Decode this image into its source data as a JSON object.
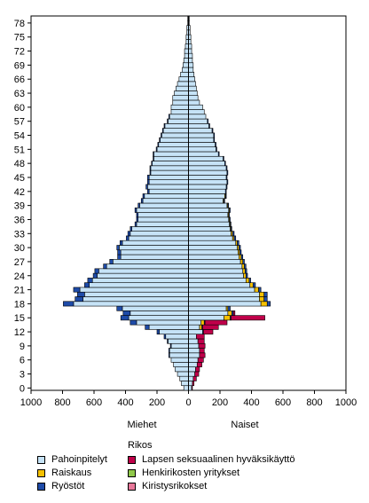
{
  "chart_data": {
    "type": "bar",
    "orientation": "horizontal-population-pyramid",
    "ages": [
      0,
      1,
      2,
      3,
      4,
      5,
      6,
      7,
      8,
      9,
      10,
      11,
      12,
      13,
      14,
      15,
      16,
      17,
      18,
      19,
      20,
      21,
      22,
      23,
      24,
      25,
      26,
      27,
      28,
      29,
      30,
      31,
      32,
      33,
      34,
      35,
      36,
      37,
      38,
      39,
      40,
      41,
      42,
      43,
      44,
      45,
      46,
      47,
      48,
      49,
      50,
      51,
      52,
      53,
      54,
      55,
      56,
      57,
      58,
      59,
      60,
      61,
      62,
      63,
      64,
      65,
      66,
      67,
      68,
      69,
      70,
      71,
      72,
      73,
      74,
      75,
      76,
      77,
      78,
      79
    ],
    "y_tick_labels": [
      "0",
      "3",
      "6",
      "9",
      "12",
      "15",
      "18",
      "21",
      "24",
      "27",
      "30",
      "33",
      "36",
      "39",
      "42",
      "45",
      "48",
      "51",
      "54",
      "57",
      "60",
      "63",
      "66",
      "69",
      "72",
      "75",
      "78"
    ],
    "x_tick_labels": [
      "1000",
      "800",
      "600",
      "400",
      "200",
      "0",
      "200",
      "400",
      "600",
      "800",
      "1000"
    ],
    "xlim": [
      -1000,
      1000
    ],
    "men_label": "Miehet",
    "women_label": "Naiset",
    "legend_title": "Rikos",
    "series": [
      {
        "name": "Pahoinpitelyt",
        "color": "#c6e3f7",
        "men": [
          30,
          45,
          55,
          70,
          85,
          95,
          110,
          120,
          120,
          110,
          130,
          145,
          185,
          250,
          330,
          380,
          370,
          420,
          730,
          670,
          660,
          690,
          630,
          610,
          580,
          570,
          520,
          480,
          430,
          430,
          440,
          420,
          380,
          370,
          360,
          330,
          320,
          320,
          330,
          310,
          290,
          280,
          250,
          260,
          250,
          250,
          240,
          240,
          230,
          220,
          220,
          200,
          190,
          180,
          170,
          160,
          150,
          130,
          120,
          110,
          110,
          100,
          100,
          90,
          80,
          70,
          60,
          50,
          40,
          35,
          30,
          25,
          25,
          20,
          15,
          15,
          10,
          10,
          5,
          5
        ],
        "women": [
          20,
          25,
          30,
          40,
          45,
          55,
          60,
          70,
          70,
          65,
          60,
          50,
          90,
          70,
          80,
          225,
          250,
          240,
          460,
          450,
          450,
          420,
          390,
          365,
          350,
          345,
          340,
          330,
          320,
          315,
          310,
          300,
          280,
          270,
          265,
          260,
          255,
          250,
          255,
          245,
          220,
          230,
          235,
          240,
          245,
          240,
          245,
          240,
          230,
          220,
          190,
          175,
          170,
          160,
          160,
          150,
          130,
          120,
          110,
          100,
          90,
          70,
          60,
          55,
          50,
          45,
          40,
          35,
          30,
          30,
          25,
          25,
          20,
          20,
          15,
          15,
          10,
          10,
          5,
          5
        ]
      },
      {
        "name": "Raiskaus",
        "color": "#f5c000",
        "men": [
          0,
          0,
          0,
          0,
          0,
          0,
          0,
          0,
          0,
          0,
          0,
          0,
          0,
          0,
          0,
          0,
          0,
          0,
          0,
          0,
          0,
          0,
          0,
          0,
          0,
          0,
          0,
          0,
          0,
          0,
          0,
          0,
          0,
          0,
          0,
          0,
          0,
          0,
          0,
          0,
          0,
          0,
          0,
          0,
          0,
          0,
          0,
          0,
          0,
          0,
          0,
          0,
          0,
          0,
          0,
          0,
          0,
          0,
          0,
          0,
          0,
          0,
          0,
          0,
          0,
          0,
          0,
          0,
          0,
          0,
          0,
          0,
          0,
          0,
          0,
          0,
          0,
          0,
          0,
          0
        ],
        "women": [
          0,
          0,
          0,
          0,
          0,
          0,
          0,
          0,
          0,
          0,
          0,
          0,
          0,
          15,
          20,
          40,
          25,
          10,
          40,
          30,
          30,
          25,
          20,
          20,
          15,
          15,
          15,
          15,
          15,
          10,
          10,
          10,
          10,
          10,
          5,
          5,
          5,
          5,
          5,
          5,
          5,
          5,
          0,
          0,
          0,
          0,
          0,
          0,
          0,
          0,
          0,
          0,
          0,
          0,
          0,
          0,
          0,
          0,
          0,
          0,
          0,
          0,
          0,
          0,
          0,
          0,
          0,
          0,
          0,
          0,
          0,
          0,
          0,
          0,
          0,
          0,
          0,
          0,
          0,
          0
        ]
      },
      {
        "name": "Ryöstöt",
        "color": "#1e4ba8",
        "men": [
          0,
          0,
          0,
          0,
          0,
          0,
          0,
          5,
          5,
          5,
          5,
          10,
          15,
          25,
          40,
          50,
          45,
          35,
          65,
          50,
          45,
          40,
          30,
          30,
          25,
          25,
          20,
          20,
          20,
          20,
          15,
          15,
          15,
          15,
          10,
          10,
          10,
          10,
          10,
          10,
          10,
          10,
          10,
          10,
          10,
          10,
          5,
          5,
          5,
          5,
          5,
          5,
          5,
          5,
          5,
          5,
          5,
          5,
          5,
          0,
          0,
          0,
          0,
          0,
          0,
          0,
          0,
          0,
          0,
          0,
          0,
          0,
          0,
          0,
          0,
          0,
          0,
          0,
          0,
          0
        ],
        "women": [
          0,
          0,
          0,
          0,
          0,
          0,
          0,
          0,
          0,
          0,
          0,
          0,
          5,
          5,
          5,
          5,
          10,
          15,
          20,
          20,
          20,
          15,
          15,
          10,
          10,
          10,
          10,
          10,
          10,
          10,
          10,
          10,
          10,
          10,
          5,
          5,
          5,
          5,
          5,
          5,
          5,
          5,
          5,
          5,
          5,
          5,
          5,
          5,
          5,
          5,
          5,
          5,
          5,
          5,
          5,
          5,
          5,
          5,
          0,
          0,
          0,
          0,
          0,
          0,
          0,
          0,
          0,
          0,
          0,
          0,
          0,
          0,
          0,
          0,
          0,
          0,
          0,
          0,
          0,
          0
        ]
      },
      {
        "name": "Lapsen seksuaalinen hyväksikäyttö",
        "color": "#c0004a",
        "men": [
          0,
          0,
          0,
          0,
          0,
          0,
          0,
          0,
          0,
          0,
          0,
          0,
          0,
          0,
          0,
          0,
          0,
          0,
          0,
          0,
          0,
          0,
          0,
          0,
          0,
          0,
          0,
          0,
          0,
          0,
          0,
          0,
          0,
          0,
          0,
          0,
          0,
          0,
          0,
          0,
          0,
          0,
          0,
          0,
          0,
          0,
          0,
          0,
          0,
          0,
          0,
          0,
          0,
          0,
          0,
          0,
          0,
          0,
          0,
          0,
          0,
          0,
          0,
          0,
          0,
          0,
          0,
          0,
          0,
          0,
          0,
          0,
          0,
          0,
          0,
          0,
          0,
          0,
          0,
          0
        ],
        "women": [
          5,
          10,
          20,
          25,
          25,
          30,
          35,
          35,
          30,
          40,
          40,
          50,
          60,
          100,
          140,
          215,
          10,
          0,
          0,
          0,
          0,
          0,
          0,
          0,
          0,
          0,
          0,
          0,
          0,
          0,
          0,
          0,
          0,
          0,
          0,
          0,
          0,
          0,
          0,
          0,
          0,
          0,
          0,
          0,
          0,
          0,
          0,
          0,
          0,
          0,
          0,
          0,
          0,
          0,
          0,
          0,
          0,
          0,
          0,
          0,
          0,
          0,
          0,
          0,
          0,
          0,
          0,
          0,
          0,
          0,
          0,
          0,
          0,
          0,
          0,
          0,
          0,
          0,
          0,
          0
        ]
      },
      {
        "name": "Henkirikosten yritykset",
        "color": "#8fc84a",
        "men": [
          0,
          0,
          0,
          0,
          0,
          0,
          0,
          0,
          0,
          0,
          0,
          0,
          0,
          0,
          0,
          0,
          0,
          0,
          0,
          0,
          0,
          0,
          0,
          0,
          0,
          0,
          0,
          0,
          0,
          0,
          0,
          0,
          0,
          0,
          0,
          0,
          0,
          0,
          0,
          0,
          0,
          0,
          0,
          0,
          0,
          0,
          0,
          0,
          0,
          0,
          0,
          0,
          0,
          0,
          0,
          0,
          0,
          0,
          0,
          0,
          0,
          0,
          0,
          0,
          0,
          0,
          0,
          0,
          0,
          0,
          0,
          0,
          0,
          0,
          0,
          0,
          0,
          0,
          0,
          0
        ],
        "women": [
          0,
          0,
          0,
          0,
          0,
          0,
          0,
          0,
          0,
          0,
          0,
          0,
          0,
          0,
          0,
          0,
          0,
          0,
          0,
          0,
          0,
          0,
          0,
          0,
          0,
          0,
          0,
          0,
          0,
          0,
          0,
          0,
          0,
          0,
          0,
          0,
          0,
          0,
          0,
          0,
          0,
          0,
          0,
          0,
          0,
          0,
          0,
          0,
          0,
          0,
          0,
          0,
          0,
          0,
          0,
          0,
          0,
          0,
          0,
          0,
          0,
          0,
          0,
          0,
          0,
          0,
          0,
          0,
          0,
          0,
          0,
          0,
          0,
          0,
          0,
          0,
          0,
          0,
          0,
          0
        ]
      },
      {
        "name": "Kiristysrikokset",
        "color": "#e8789a",
        "men": [
          0,
          0,
          0,
          0,
          0,
          0,
          0,
          0,
          0,
          0,
          0,
          0,
          0,
          0,
          0,
          0,
          0,
          0,
          0,
          0,
          0,
          0,
          0,
          0,
          0,
          0,
          0,
          0,
          0,
          0,
          0,
          0,
          0,
          0,
          0,
          0,
          0,
          0,
          0,
          0,
          0,
          0,
          0,
          0,
          0,
          0,
          0,
          0,
          0,
          0,
          0,
          0,
          0,
          0,
          0,
          0,
          0,
          0,
          0,
          0,
          0,
          0,
          0,
          0,
          0,
          0,
          0,
          0,
          0,
          0,
          0,
          0,
          0,
          0,
          0,
          0,
          0,
          0,
          0,
          0
        ],
        "women": [
          0,
          0,
          0,
          0,
          0,
          0,
          0,
          0,
          0,
          0,
          0,
          0,
          0,
          0,
          0,
          0,
          0,
          0,
          0,
          0,
          0,
          0,
          0,
          0,
          0,
          0,
          0,
          0,
          0,
          0,
          0,
          0,
          0,
          0,
          0,
          0,
          0,
          0,
          0,
          0,
          0,
          0,
          0,
          0,
          0,
          0,
          0,
          0,
          0,
          0,
          0,
          0,
          0,
          0,
          0,
          0,
          0,
          0,
          0,
          0,
          0,
          0,
          0,
          0,
          0,
          0,
          0,
          0,
          0,
          0,
          0,
          0,
          0,
          0,
          0,
          0,
          0,
          0,
          0,
          0
        ]
      }
    ],
    "grid": false,
    "legend_position": "bottom",
    "bar_outline": "#000000"
  }
}
